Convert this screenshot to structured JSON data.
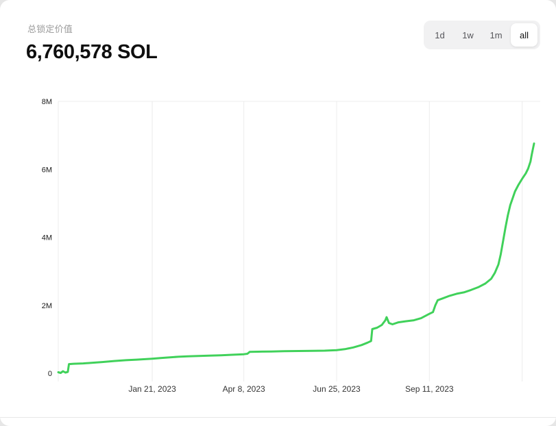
{
  "header": {
    "title": "总锁定价值",
    "value": "6,760,578 SOL"
  },
  "range_buttons": [
    {
      "label": "1d",
      "selected": false
    },
    {
      "label": "1w",
      "selected": false
    },
    {
      "label": "1m",
      "selected": false
    },
    {
      "label": "all",
      "selected": true
    }
  ],
  "chart_data": {
    "type": "line",
    "title": "总锁定价值",
    "unit": "SOL",
    "xlabel": "",
    "ylabel": "",
    "line_color": "#40d15a",
    "grid_color": "#ececec",
    "y_label_color": "#1a1a1a",
    "x_label_color": "#333333",
    "ylim": [
      0,
      8000000
    ],
    "y_ticks": [
      {
        "value": 0,
        "label": "0"
      },
      {
        "value": 2000000,
        "label": "2M"
      },
      {
        "value": 4000000,
        "label": "4M"
      },
      {
        "value": 6000000,
        "label": "6M"
      },
      {
        "value": 8000000,
        "label": "8M"
      }
    ],
    "x_ticks": [
      {
        "date": "2023-01-21",
        "label": "Jan 21, 2023"
      },
      {
        "date": "2023-04-08",
        "label": "Apr 8, 2023"
      },
      {
        "date": "2023-06-25",
        "label": "Jun 25, 2023"
      },
      {
        "date": "2023-09-11",
        "label": "Sep 11, 2023"
      }
    ],
    "unlabeled_gridlines": [
      "2023-11-28"
    ],
    "points": [
      [
        "2022-11-03",
        30000
      ],
      [
        "2022-11-05",
        10000
      ],
      [
        "2022-11-07",
        60000
      ],
      [
        "2022-11-09",
        20000
      ],
      [
        "2022-11-11",
        40000
      ],
      [
        "2022-11-12",
        270000
      ],
      [
        "2022-11-16",
        280000
      ],
      [
        "2022-11-24",
        290000
      ],
      [
        "2022-12-02",
        310000
      ],
      [
        "2022-12-10",
        330000
      ],
      [
        "2022-12-20",
        360000
      ],
      [
        "2022-12-30",
        385000
      ],
      [
        "2023-01-08",
        400000
      ],
      [
        "2023-01-15",
        415000
      ],
      [
        "2023-01-21",
        430000
      ],
      [
        "2023-01-28",
        450000
      ],
      [
        "2023-02-05",
        470000
      ],
      [
        "2023-02-12",
        485000
      ],
      [
        "2023-02-20",
        500000
      ],
      [
        "2023-03-01",
        510000
      ],
      [
        "2023-03-10",
        520000
      ],
      [
        "2023-03-20",
        530000
      ],
      [
        "2023-03-29",
        545000
      ],
      [
        "2023-04-08",
        560000
      ],
      [
        "2023-04-11",
        575000
      ],
      [
        "2023-04-13",
        630000
      ],
      [
        "2023-04-20",
        635000
      ],
      [
        "2023-05-01",
        640000
      ],
      [
        "2023-05-12",
        648000
      ],
      [
        "2023-05-24",
        655000
      ],
      [
        "2023-06-05",
        660000
      ],
      [
        "2023-06-15",
        665000
      ],
      [
        "2023-06-25",
        680000
      ],
      [
        "2023-07-02",
        710000
      ],
      [
        "2023-07-09",
        760000
      ],
      [
        "2023-07-16",
        830000
      ],
      [
        "2023-07-21",
        900000
      ],
      [
        "2023-07-24",
        950000
      ],
      [
        "2023-07-25",
        1300000
      ],
      [
        "2023-07-29",
        1340000
      ],
      [
        "2023-08-02",
        1420000
      ],
      [
        "2023-08-05",
        1560000
      ],
      [
        "2023-08-06",
        1650000
      ],
      [
        "2023-08-08",
        1480000
      ],
      [
        "2023-08-11",
        1440000
      ],
      [
        "2023-08-16",
        1500000
      ],
      [
        "2023-08-22",
        1530000
      ],
      [
        "2023-08-29",
        1560000
      ],
      [
        "2023-09-04",
        1620000
      ],
      [
        "2023-09-11",
        1750000
      ],
      [
        "2023-09-14",
        1800000
      ],
      [
        "2023-09-16",
        2000000
      ],
      [
        "2023-09-18",
        2150000
      ],
      [
        "2023-09-22",
        2200000
      ],
      [
        "2023-09-28",
        2280000
      ],
      [
        "2023-10-04",
        2340000
      ],
      [
        "2023-10-10",
        2380000
      ],
      [
        "2023-10-16",
        2450000
      ],
      [
        "2023-10-22",
        2530000
      ],
      [
        "2023-10-28",
        2640000
      ],
      [
        "2023-11-02",
        2780000
      ],
      [
        "2023-11-05",
        2950000
      ],
      [
        "2023-11-08",
        3200000
      ],
      [
        "2023-11-10",
        3500000
      ],
      [
        "2023-11-12",
        3900000
      ],
      [
        "2023-11-14",
        4300000
      ],
      [
        "2023-11-16",
        4650000
      ],
      [
        "2023-11-18",
        4950000
      ],
      [
        "2023-11-20",
        5150000
      ],
      [
        "2023-11-22",
        5350000
      ],
      [
        "2023-11-25",
        5550000
      ],
      [
        "2023-11-28",
        5720000
      ],
      [
        "2023-12-01",
        5880000
      ],
      [
        "2023-12-03",
        6020000
      ],
      [
        "2023-12-05",
        6230000
      ],
      [
        "2023-12-06",
        6420000
      ],
      [
        "2023-12-07",
        6600000
      ],
      [
        "2023-12-08",
        6760578
      ]
    ]
  }
}
